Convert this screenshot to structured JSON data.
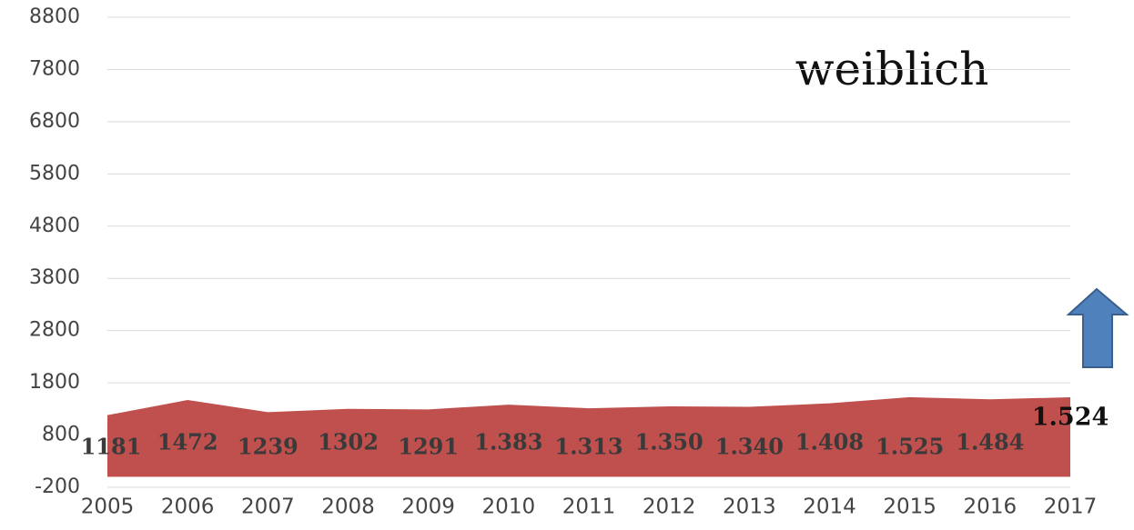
{
  "chart_data": {
    "type": "area",
    "annotation": "weiblich",
    "categories": [
      "2005",
      "2006",
      "2007",
      "2008",
      "2009",
      "2010",
      "2011",
      "2012",
      "2013",
      "2014",
      "2015",
      "2016",
      "2017"
    ],
    "values": [
      1181,
      1472,
      1239,
      1302,
      1291,
      1383,
      1313,
      1350,
      1340,
      1408,
      1525,
      1484,
      1524
    ],
    "value_labels": [
      "1181",
      "1472",
      "1239",
      "1302",
      "1291",
      "1.383",
      "1.313",
      "1.350",
      "1.340",
      "1.408",
      "1.525",
      "1.484",
      "1.524"
    ],
    "color": "#c0504d",
    "ylim": [
      -200,
      8800
    ],
    "yticks": [
      -200,
      800,
      1800,
      2800,
      3800,
      4800,
      5800,
      6800,
      7800,
      8800
    ],
    "grid": true
  }
}
